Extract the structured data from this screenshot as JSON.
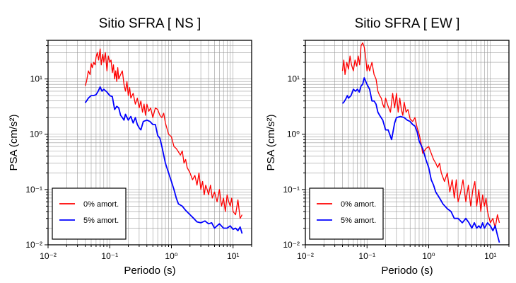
{
  "chart_data": [
    {
      "type": "line",
      "title": "Sitio SFRA [ NS ]",
      "xlabel": "Periodo (s)",
      "ylabel": "PSA (cm/s²)",
      "xscale": "log",
      "yscale": "log",
      "xlim": [
        0.01,
        20
      ],
      "ylim": [
        0.01,
        50
      ],
      "grid": true,
      "legend_position": "bottom-left",
      "x_ticks": [
        "10⁻²",
        "10⁻¹",
        "10⁰",
        "10¹"
      ],
      "y_ticks": [
        "10⁻²",
        "10⁻¹",
        "10⁰",
        "10¹"
      ],
      "series": [
        {
          "name": "0% amort.",
          "color": "#ff0000",
          "x": [
            0.04,
            0.042,
            0.045,
            0.048,
            0.05,
            0.052,
            0.055,
            0.058,
            0.06,
            0.063,
            0.066,
            0.07,
            0.073,
            0.077,
            0.08,
            0.085,
            0.09,
            0.095,
            0.1,
            0.105,
            0.11,
            0.115,
            0.12,
            0.125,
            0.13,
            0.135,
            0.14,
            0.15,
            0.16,
            0.17,
            0.18,
            0.19,
            0.2,
            0.21,
            0.22,
            0.24,
            0.26,
            0.28,
            0.3,
            0.32,
            0.34,
            0.36,
            0.38,
            0.4,
            0.43,
            0.46,
            0.5,
            0.55,
            0.6,
            0.65,
            0.7,
            0.75,
            0.8,
            0.9,
            1.0,
            1.1,
            1.2,
            1.3,
            1.4,
            1.5,
            1.6,
            1.7,
            1.8,
            2.0,
            2.2,
            2.4,
            2.6,
            2.8,
            3.0,
            3.2,
            3.4,
            3.6,
            3.8,
            4.0,
            4.3,
            4.6,
            5.0,
            5.5,
            6.0,
            6.5,
            7.0,
            7.5,
            8.0,
            8.5,
            9.0,
            9.5,
            10.0,
            11.0,
            12.0,
            13.0,
            14.0
          ],
          "y": [
            7.5,
            9,
            14,
            12,
            19,
            16,
            20,
            18,
            25,
            30,
            22,
            35,
            18,
            28,
            20,
            30,
            14,
            26,
            20,
            22,
            13,
            18,
            10,
            14,
            9,
            16,
            10,
            12,
            14,
            8,
            6,
            9,
            5,
            7,
            4.5,
            5.5,
            3.5,
            4.5,
            3,
            4,
            2.5,
            3.5,
            2.2,
            3.5,
            2.6,
            3,
            2,
            3,
            2.8,
            2.2,
            2,
            2.4,
            1.6,
            1.0,
            0.9,
            0.6,
            0.55,
            0.48,
            0.42,
            0.5,
            0.3,
            0.35,
            0.25,
            0.2,
            0.15,
            0.18,
            0.12,
            0.2,
            0.1,
            0.14,
            0.08,
            0.12,
            0.1,
            0.08,
            0.12,
            0.07,
            0.09,
            0.06,
            0.1,
            0.05,
            0.07,
            0.04,
            0.08,
            0.06,
            0.05,
            0.07,
            0.04,
            0.035,
            0.065,
            0.03,
            0.035
          ]
        },
        {
          "name": "5% amort.",
          "color": "#0000ff",
          "x": [
            0.04,
            0.042,
            0.045,
            0.048,
            0.05,
            0.055,
            0.06,
            0.065,
            0.07,
            0.075,
            0.08,
            0.09,
            0.1,
            0.11,
            0.12,
            0.13,
            0.14,
            0.15,
            0.16,
            0.17,
            0.18,
            0.2,
            0.22,
            0.24,
            0.26,
            0.28,
            0.3,
            0.32,
            0.35,
            0.4,
            0.45,
            0.5,
            0.55,
            0.6,
            0.65,
            0.7,
            0.8,
            0.9,
            1.0,
            1.1,
            1.2,
            1.3,
            1.5,
            1.7,
            2.0,
            2.3,
            2.6,
            3.0,
            3.5,
            4.0,
            4.5,
            5.0,
            5.5,
            6.0,
            7.0,
            8.0,
            9.0,
            10.0,
            11.0,
            12.0,
            13.0,
            14.0
          ],
          "y": [
            3.7,
            4.0,
            4.5,
            4.8,
            5.0,
            5.0,
            5.2,
            6.0,
            7.2,
            6.0,
            6.5,
            5.8,
            5.0,
            4.8,
            2.8,
            3.2,
            3.0,
            2.2,
            2.0,
            1.8,
            2.3,
            1.8,
            2.1,
            1.6,
            2.0,
            1.5,
            1.3,
            1.2,
            1.7,
            1.8,
            1.7,
            1.5,
            1.5,
            0.95,
            0.85,
            0.6,
            0.3,
            0.2,
            0.14,
            0.1,
            0.07,
            0.055,
            0.05,
            0.042,
            0.035,
            0.03,
            0.026,
            0.025,
            0.027,
            0.024,
            0.025,
            0.02,
            0.022,
            0.024,
            0.02,
            0.02,
            0.022,
            0.019,
            0.02,
            0.018,
            0.021,
            0.016
          ]
        }
      ]
    },
    {
      "type": "line",
      "title": "Sitio SFRA [ EW ]",
      "xlabel": "Periodo (s)",
      "ylabel": "PSA (cm/s²)",
      "xscale": "log",
      "yscale": "log",
      "xlim": [
        0.01,
        20
      ],
      "ylim": [
        0.01,
        50
      ],
      "grid": true,
      "legend_position": "bottom-left",
      "x_ticks": [
        "10⁻²",
        "10⁻¹",
        "10⁰",
        "10¹"
      ],
      "y_ticks": [
        "10⁻²",
        "10⁻¹",
        "10⁰",
        "10¹"
      ],
      "series": [
        {
          "name": "0% amort.",
          "color": "#ff0000",
          "x": [
            0.04,
            0.042,
            0.044,
            0.047,
            0.05,
            0.053,
            0.056,
            0.06,
            0.064,
            0.068,
            0.072,
            0.076,
            0.08,
            0.085,
            0.09,
            0.095,
            0.1,
            0.105,
            0.11,
            0.12,
            0.13,
            0.14,
            0.15,
            0.16,
            0.17,
            0.18,
            0.19,
            0.2,
            0.22,
            0.24,
            0.26,
            0.28,
            0.3,
            0.32,
            0.34,
            0.36,
            0.38,
            0.4,
            0.43,
            0.46,
            0.5,
            0.55,
            0.6,
            0.65,
            0.7,
            0.75,
            0.8,
            0.9,
            1.0,
            1.1,
            1.2,
            1.3,
            1.4,
            1.5,
            1.6,
            1.8,
            2.0,
            2.2,
            2.4,
            2.6,
            2.8,
            3.0,
            3.3,
            3.6,
            4.0,
            4.4,
            4.8,
            5.2,
            5.6,
            6.0,
            6.5,
            7.0,
            7.5,
            8.0,
            8.5,
            9.0,
            10.0,
            11.0,
            12.0,
            13.0,
            14.0
          ],
          "y": [
            14,
            22,
            12,
            20,
            15,
            26,
            18,
            14,
            22,
            17,
            26,
            18,
            40,
            45,
            38,
            25,
            14,
            18,
            14,
            20,
            12,
            10,
            6,
            5,
            4.5,
            3.5,
            3,
            4.5,
            3.2,
            2.5,
            5.5,
            3,
            5.5,
            2.5,
            4.5,
            2.8,
            2.2,
            3.8,
            2.5,
            2.8,
            1.9,
            1.7,
            2.0,
            1.3,
            1.0,
            0.7,
            0.45,
            0.55,
            0.6,
            0.45,
            0.35,
            0.3,
            0.25,
            0.3,
            0.2,
            0.14,
            0.2,
            0.09,
            0.15,
            0.07,
            0.15,
            0.06,
            0.09,
            0.15,
            0.06,
            0.12,
            0.05,
            0.1,
            0.14,
            0.05,
            0.1,
            0.04,
            0.08,
            0.05,
            0.07,
            0.04,
            0.025,
            0.03,
            0.02,
            0.035,
            0.025
          ]
        },
        {
          "name": "5% amort.",
          "color": "#0000ff",
          "x": [
            0.04,
            0.042,
            0.045,
            0.048,
            0.05,
            0.055,
            0.06,
            0.065,
            0.07,
            0.075,
            0.08,
            0.085,
            0.09,
            0.1,
            0.11,
            0.12,
            0.13,
            0.14,
            0.15,
            0.16,
            0.18,
            0.2,
            0.22,
            0.25,
            0.28,
            0.3,
            0.35,
            0.4,
            0.45,
            0.5,
            0.55,
            0.6,
            0.65,
            0.7,
            0.8,
            0.9,
            1.0,
            1.1,
            1.2,
            1.3,
            1.5,
            1.7,
            2.0,
            2.3,
            2.6,
            3.0,
            3.5,
            4.0,
            4.5,
            5.0,
            5.5,
            6.0,
            6.5,
            7.0,
            7.5,
            8.0,
            9.0,
            10.0,
            11.0,
            12.0,
            13.0,
            14.0
          ],
          "y": [
            3.6,
            3.8,
            4.3,
            5.0,
            4.5,
            5.0,
            6.5,
            6.0,
            6.5,
            5.8,
            7.5,
            8.0,
            10.5,
            8.0,
            6.5,
            4.0,
            4.0,
            3.5,
            2.5,
            2.2,
            1.8,
            1.2,
            1.2,
            0.8,
            1.6,
            2.0,
            2.1,
            2.0,
            1.8,
            1.7,
            1.5,
            1.4,
            1.1,
            0.75,
            0.55,
            0.35,
            0.25,
            0.15,
            0.12,
            0.09,
            0.07,
            0.055,
            0.045,
            0.04,
            0.03,
            0.03,
            0.025,
            0.03,
            0.025,
            0.02,
            0.025,
            0.02,
            0.022,
            0.02,
            0.025,
            0.02,
            0.025,
            0.022,
            0.018,
            0.022,
            0.015,
            0.011
          ]
        }
      ]
    }
  ]
}
